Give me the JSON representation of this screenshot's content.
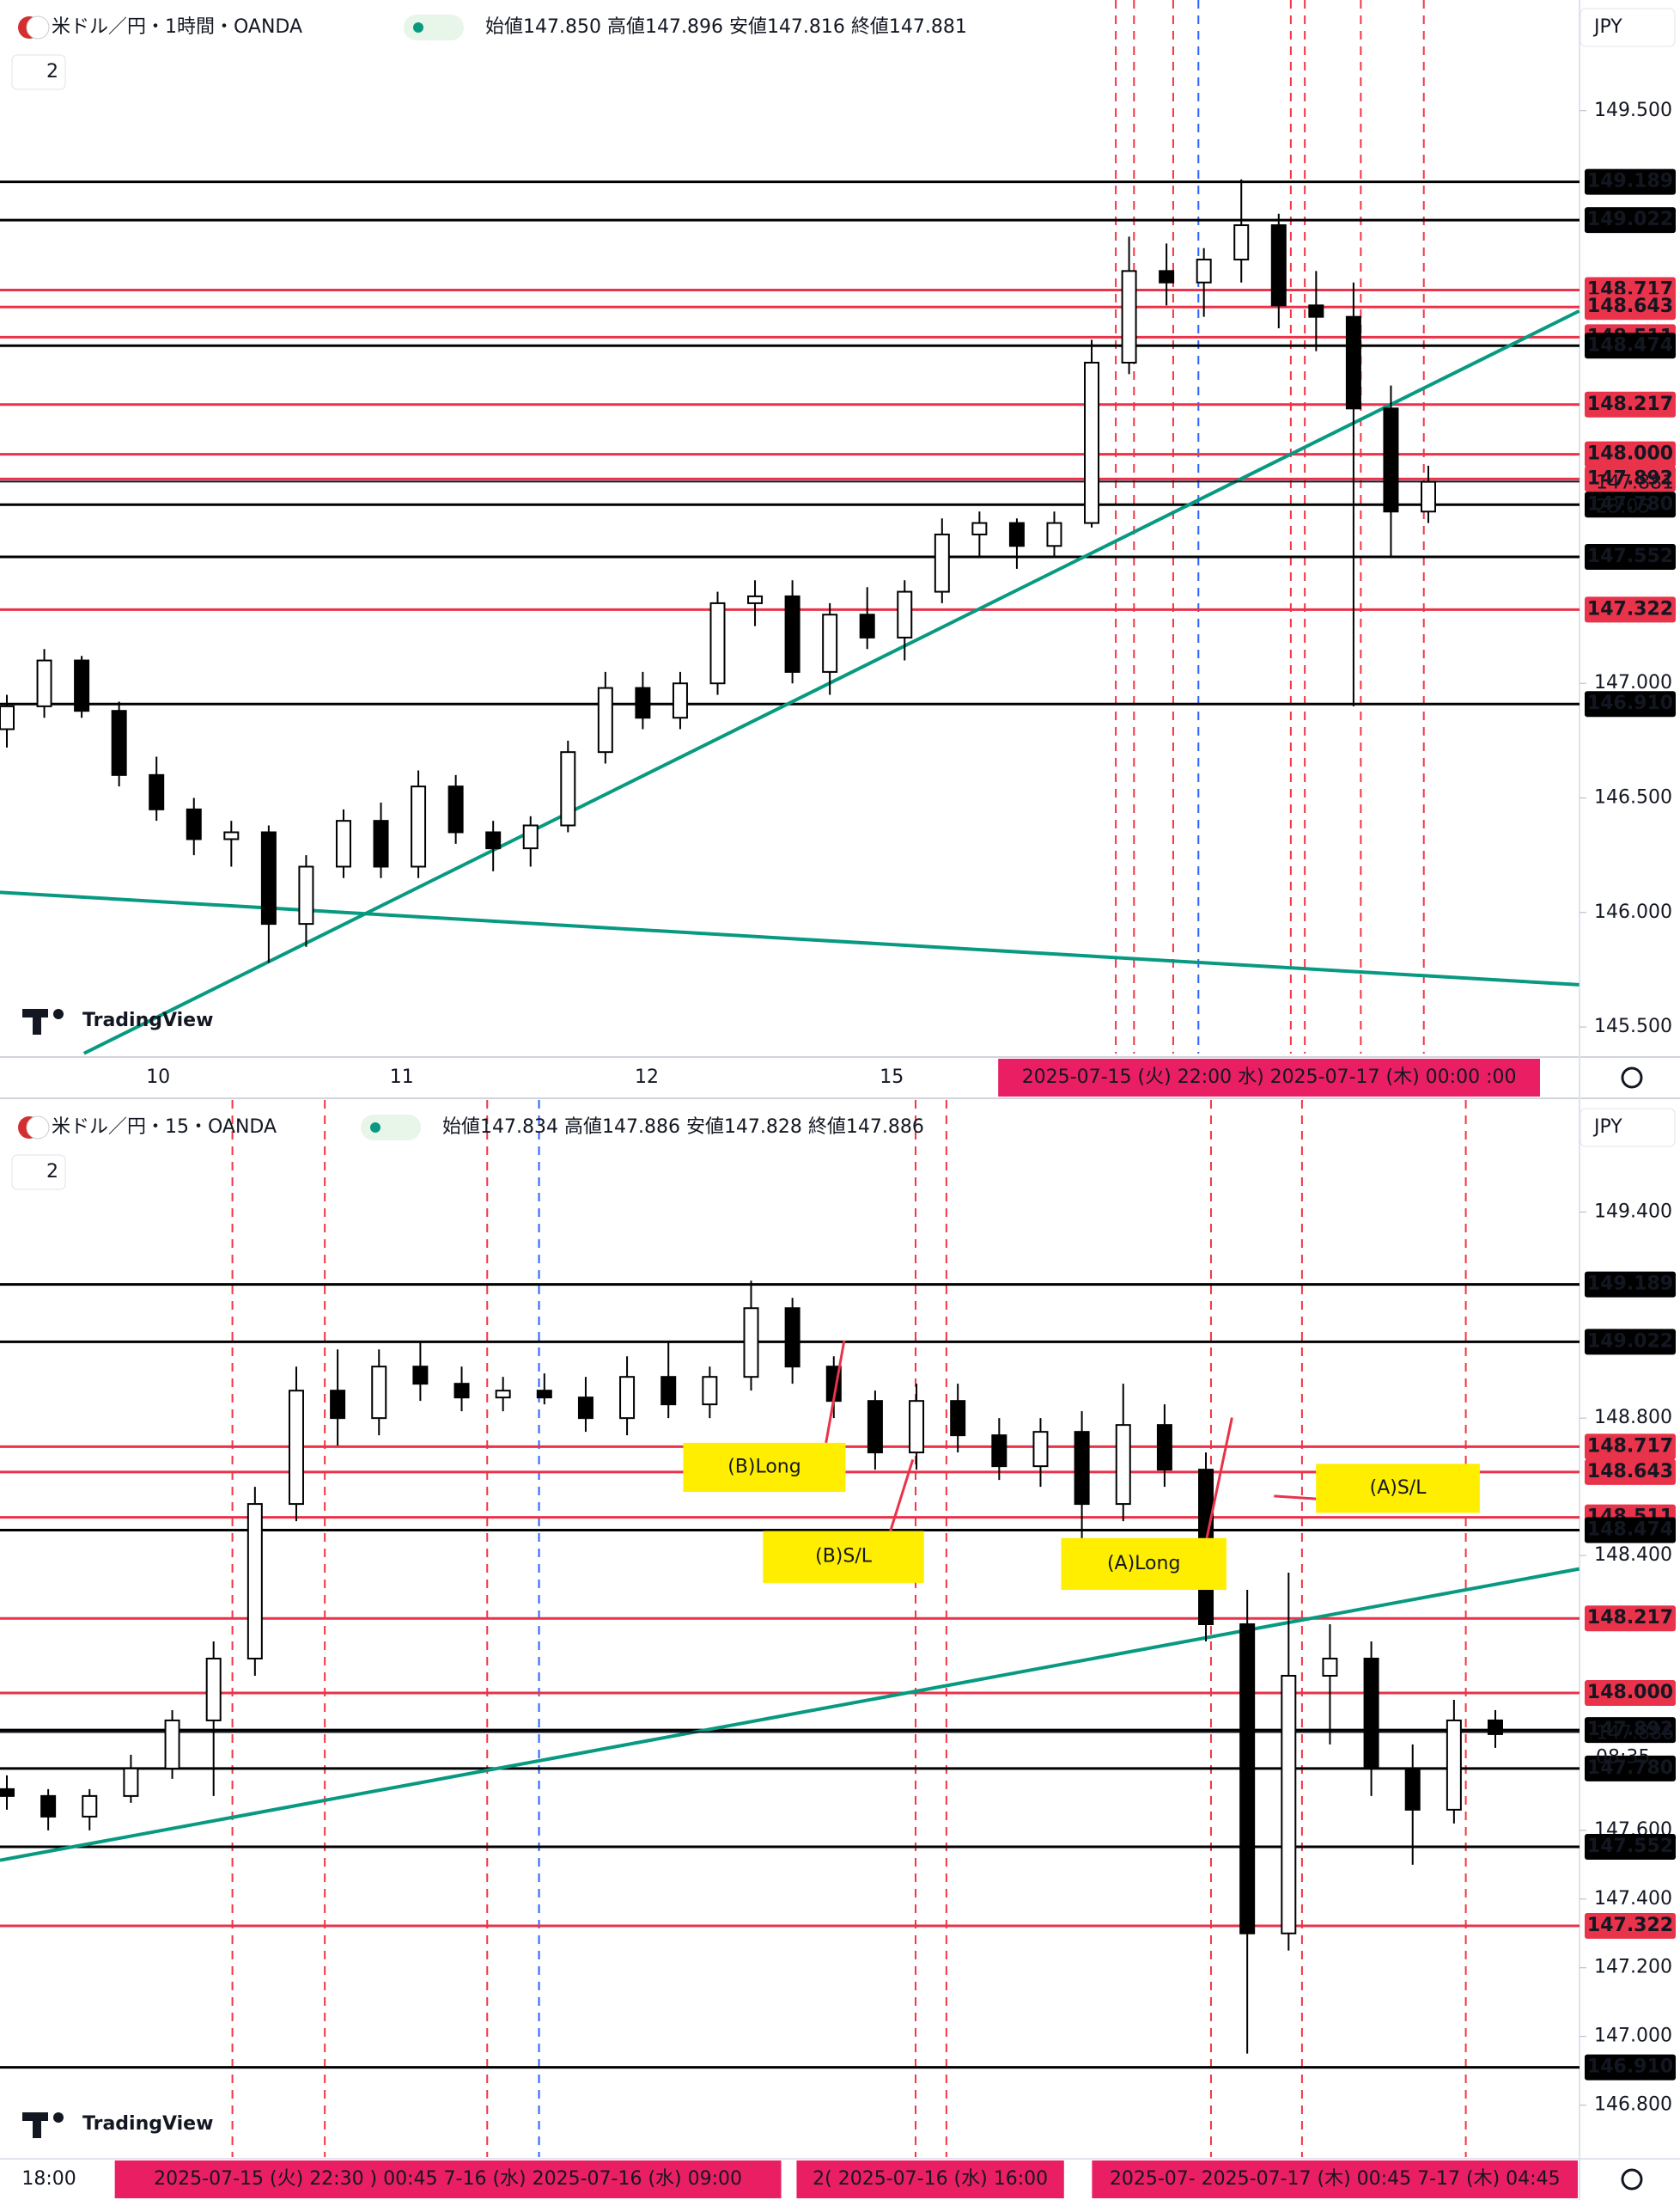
{
  "chart_data": [
    {
      "type": "candlestick",
      "title": "米ドル／円・1時間・OANDA",
      "ohlc_header": "始値147.850 高値147.896 安値147.816 終値147.881",
      "currency": "JPY",
      "indicator_count": 2,
      "logo": "TradingView",
      "ylim": [
        145.384,
        149.983
      ],
      "yticks": [
        {
          "value": 149.5,
          "label": "149.500"
        },
        {
          "value": 147,
          "label": "147.000"
        },
        {
          "value": 146.5,
          "label": "146.500"
        },
        {
          "value": 146,
          "label": "146.000"
        },
        {
          "value": 145.5,
          "label": "145.500"
        }
      ],
      "levels": [
        {
          "value": 149.189,
          "label": "149.189",
          "color": "#000000"
        },
        {
          "value": 149.022,
          "label": "149.022",
          "color": "#000000"
        },
        {
          "value": 148.717,
          "label": "148.717",
          "color": "#e8334a"
        },
        {
          "value": 148.643,
          "label": "148.643",
          "color": "#e8334a"
        },
        {
          "value": 148.511,
          "label": "148.511",
          "color": "#e8334a"
        },
        {
          "value": 148.474,
          "label": "148.474",
          "color": "#000000"
        },
        {
          "value": 148.217,
          "label": "148.217",
          "color": "#e8334a"
        },
        {
          "value": 148.0,
          "label": "148.000",
          "color": "#e8334a"
        },
        {
          "value": 147.892,
          "label": "147.892",
          "color": "#e8334a"
        },
        {
          "value": 147.78,
          "label": "147.780",
          "color": "#000000"
        },
        {
          "value": 147.552,
          "label": "147.552",
          "color": "#000000"
        },
        {
          "value": 147.322,
          "label": "147.322",
          "color": "#e8334a"
        },
        {
          "value": 146.91,
          "label": "146.910",
          "color": "#000000"
        }
      ],
      "last_price": {
        "value": 147.881,
        "label": "147.881"
      },
      "countdown": "23:05",
      "x_labels": [
        "10",
        "11",
        "12",
        "15"
      ],
      "time_highlight": [
        "2025-07-15 (火)  22:00  水)  2025-07-17 (木)  00:00  :00"
      ],
      "annotations": [],
      "candles": [
        [
          146.8,
          146.95,
          146.72,
          146.9
        ],
        [
          146.9,
          147.15,
          146.85,
          147.1
        ],
        [
          147.1,
          147.12,
          146.85,
          146.88
        ],
        [
          146.88,
          146.92,
          146.55,
          146.6
        ],
        [
          146.6,
          146.68,
          146.4,
          146.45
        ],
        [
          146.45,
          146.5,
          146.25,
          146.32
        ],
        [
          146.32,
          146.4,
          146.2,
          146.35
        ],
        [
          146.35,
          146.38,
          145.78,
          145.95
        ],
        [
          145.95,
          146.25,
          145.85,
          146.2
        ],
        [
          146.2,
          146.45,
          146.15,
          146.4
        ],
        [
          146.4,
          146.48,
          146.15,
          146.2
        ],
        [
          146.2,
          146.62,
          146.15,
          146.55
        ],
        [
          146.55,
          146.6,
          146.3,
          146.35
        ],
        [
          146.35,
          146.4,
          146.18,
          146.28
        ],
        [
          146.28,
          146.42,
          146.2,
          146.38
        ],
        [
          146.38,
          146.75,
          146.35,
          146.7
        ],
        [
          146.7,
          147.05,
          146.65,
          146.98
        ],
        [
          146.98,
          147.05,
          146.8,
          146.85
        ],
        [
          146.85,
          147.05,
          146.8,
          147.0
        ],
        [
          147.0,
          147.4,
          146.95,
          147.35
        ],
        [
          147.35,
          147.45,
          147.25,
          147.38
        ],
        [
          147.38,
          147.45,
          147.0,
          147.05
        ],
        [
          147.05,
          147.35,
          146.95,
          147.3
        ],
        [
          147.3,
          147.42,
          147.15,
          147.2
        ],
        [
          147.2,
          147.45,
          147.1,
          147.4
        ],
        [
          147.4,
          147.72,
          147.35,
          147.65
        ],
        [
          147.65,
          147.75,
          147.55,
          147.7
        ],
        [
          147.7,
          147.72,
          147.5,
          147.6
        ],
        [
          147.6,
          147.75,
          147.55,
          147.7
        ],
        [
          147.7,
          148.5,
          147.68,
          148.4
        ],
        [
          148.4,
          148.95,
          148.35,
          148.8
        ],
        [
          148.8,
          148.92,
          148.65,
          148.75
        ],
        [
          148.75,
          148.9,
          148.6,
          148.85
        ],
        [
          148.85,
          149.2,
          148.75,
          149.0
        ],
        [
          149.0,
          149.05,
          148.55,
          148.65
        ],
        [
          148.65,
          148.8,
          148.45,
          148.6
        ],
        [
          148.6,
          148.75,
          146.9,
          148.2
        ],
        [
          148.2,
          148.3,
          147.55,
          147.75
        ],
        [
          147.75,
          147.95,
          147.7,
          147.88
        ]
      ]
    },
    {
      "type": "candlestick",
      "title": "米ドル／円・15・OANDA",
      "ohlc_header": "始値147.834 高値147.886 安値147.828 終値147.886",
      "currency": "JPY",
      "indicator_count": 2,
      "logo": "TradingView",
      "ylim": [
        146.649,
        149.726
      ],
      "yticks": [
        {
          "value": 149.4,
          "label": "149.400"
        },
        {
          "value": 148.8,
          "label": "148.800"
        },
        {
          "value": 148.4,
          "label": "148.400"
        },
        {
          "value": 147.6,
          "label": "147.600"
        },
        {
          "value": 147.4,
          "label": "147.400"
        },
        {
          "value": 147.2,
          "label": "147.200"
        },
        {
          "value": 147,
          "label": "147.000"
        },
        {
          "value": 146.8,
          "label": "146.800"
        }
      ],
      "levels": [
        {
          "value": 149.189,
          "label": "149.189",
          "color": "#000000"
        },
        {
          "value": 149.022,
          "label": "149.022",
          "color": "#000000"
        },
        {
          "value": 148.717,
          "label": "148.717",
          "color": "#e8334a"
        },
        {
          "value": 148.643,
          "label": "148.643",
          "color": "#e8334a"
        },
        {
          "value": 148.511,
          "label": "148.511",
          "color": "#e8334a"
        },
        {
          "value": 148.474,
          "label": "148.474",
          "color": "#000000"
        },
        {
          "value": 148.217,
          "label": "148.217",
          "color": "#e8334a"
        },
        {
          "value": 148.0,
          "label": "148.000",
          "color": "#e8334a"
        },
        {
          "value": 147.892,
          "label": "147.892",
          "color": "#000000"
        },
        {
          "value": 147.78,
          "label": "147.780",
          "color": "#000000"
        },
        {
          "value": 147.552,
          "label": "147.552",
          "color": "#000000"
        },
        {
          "value": 147.322,
          "label": "147.322",
          "color": "#e8334a"
        },
        {
          "value": 146.91,
          "label": "146.910",
          "color": "#000000"
        }
      ],
      "last_price": {
        "value": 147.886,
        "label": "147.886"
      },
      "countdown": "08:35",
      "x_labels": [
        "18:00"
      ],
      "time_highlight": [
        "2025-07-15 (火)  22:30   )  00:45  7-16 (水)   2025-07-16 (水)  09:00",
        "2(  2025-07-16 (水)  16:00",
        "2025-07-  2025-07-17 (木)  00:45  7-17 (木)  04:45"
      ],
      "annotations": [
        "(B)Long",
        "(B)S/L",
        "(A)Long",
        "(A)S/L"
      ],
      "candles": [
        [
          147.72,
          147.76,
          147.66,
          147.7
        ],
        [
          147.7,
          147.72,
          147.6,
          147.64
        ],
        [
          147.64,
          147.72,
          147.6,
          147.7
        ],
        [
          147.7,
          147.82,
          147.68,
          147.78
        ],
        [
          147.78,
          147.95,
          147.75,
          147.92
        ],
        [
          147.92,
          148.15,
          147.7,
          148.1
        ],
        [
          148.1,
          148.6,
          148.05,
          148.55
        ],
        [
          148.55,
          148.95,
          148.5,
          148.88
        ],
        [
          148.88,
          149.0,
          148.72,
          148.8
        ],
        [
          148.8,
          149.0,
          148.75,
          148.95
        ],
        [
          148.95,
          149.02,
          148.85,
          148.9
        ],
        [
          148.9,
          148.95,
          148.82,
          148.86
        ],
        [
          148.86,
          148.92,
          148.82,
          148.88
        ],
        [
          148.88,
          148.93,
          148.84,
          148.86
        ],
        [
          148.86,
          148.92,
          148.76,
          148.8
        ],
        [
          148.8,
          148.98,
          148.75,
          148.92
        ],
        [
          148.92,
          149.02,
          148.8,
          148.84
        ],
        [
          148.84,
          148.95,
          148.8,
          148.92
        ],
        [
          148.92,
          149.2,
          148.88,
          149.12
        ],
        [
          149.12,
          149.15,
          148.9,
          148.95
        ],
        [
          148.95,
          148.98,
          148.8,
          148.85
        ],
        [
          148.85,
          148.88,
          148.65,
          148.7
        ],
        [
          148.7,
          148.9,
          148.65,
          148.85
        ],
        [
          148.85,
          148.9,
          148.7,
          148.75
        ],
        [
          148.75,
          148.8,
          148.62,
          148.66
        ],
        [
          148.66,
          148.8,
          148.6,
          148.76
        ],
        [
          148.76,
          148.82,
          148.45,
          148.55
        ],
        [
          148.55,
          148.9,
          148.5,
          148.78
        ],
        [
          148.78,
          148.84,
          148.6,
          148.65
        ],
        [
          148.65,
          148.7,
          148.15,
          148.2
        ],
        [
          148.2,
          148.3,
          146.95,
          147.3
        ],
        [
          147.3,
          148.35,
          147.25,
          148.05
        ],
        [
          148.05,
          148.2,
          147.85,
          148.1
        ],
        [
          148.1,
          148.15,
          147.7,
          147.78
        ],
        [
          147.78,
          147.85,
          147.5,
          147.66
        ],
        [
          147.66,
          147.98,
          147.62,
          147.92
        ],
        [
          147.92,
          147.95,
          147.84,
          147.88
        ]
      ]
    }
  ]
}
